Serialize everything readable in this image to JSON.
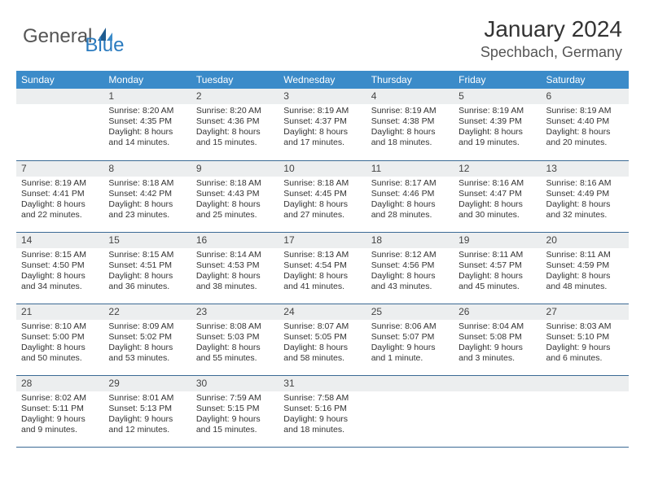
{
  "logo": {
    "general": "General",
    "blue": "Blue"
  },
  "title": "January 2024",
  "location": "Spechbach, Germany",
  "colors": {
    "header_bg": "#3b8bc9",
    "header_text": "#ffffff",
    "daynum_bg": "#eceeef",
    "row_border": "#3b6a95",
    "logo_blue": "#2b7bbf",
    "logo_gray": "#555555"
  },
  "day_headers": [
    "Sunday",
    "Monday",
    "Tuesday",
    "Wednesday",
    "Thursday",
    "Friday",
    "Saturday"
  ],
  "weeks": [
    [
      {
        "num": "",
        "lines": [
          "",
          "",
          "",
          ""
        ]
      },
      {
        "num": "1",
        "lines": [
          "Sunrise: 8:20 AM",
          "Sunset: 4:35 PM",
          "Daylight: 8 hours",
          "and 14 minutes."
        ]
      },
      {
        "num": "2",
        "lines": [
          "Sunrise: 8:20 AM",
          "Sunset: 4:36 PM",
          "Daylight: 8 hours",
          "and 15 minutes."
        ]
      },
      {
        "num": "3",
        "lines": [
          "Sunrise: 8:19 AM",
          "Sunset: 4:37 PM",
          "Daylight: 8 hours",
          "and 17 minutes."
        ]
      },
      {
        "num": "4",
        "lines": [
          "Sunrise: 8:19 AM",
          "Sunset: 4:38 PM",
          "Daylight: 8 hours",
          "and 18 minutes."
        ]
      },
      {
        "num": "5",
        "lines": [
          "Sunrise: 8:19 AM",
          "Sunset: 4:39 PM",
          "Daylight: 8 hours",
          "and 19 minutes."
        ]
      },
      {
        "num": "6",
        "lines": [
          "Sunrise: 8:19 AM",
          "Sunset: 4:40 PM",
          "Daylight: 8 hours",
          "and 20 minutes."
        ]
      }
    ],
    [
      {
        "num": "7",
        "lines": [
          "Sunrise: 8:19 AM",
          "Sunset: 4:41 PM",
          "Daylight: 8 hours",
          "and 22 minutes."
        ]
      },
      {
        "num": "8",
        "lines": [
          "Sunrise: 8:18 AM",
          "Sunset: 4:42 PM",
          "Daylight: 8 hours",
          "and 23 minutes."
        ]
      },
      {
        "num": "9",
        "lines": [
          "Sunrise: 8:18 AM",
          "Sunset: 4:43 PM",
          "Daylight: 8 hours",
          "and 25 minutes."
        ]
      },
      {
        "num": "10",
        "lines": [
          "Sunrise: 8:18 AM",
          "Sunset: 4:45 PM",
          "Daylight: 8 hours",
          "and 27 minutes."
        ]
      },
      {
        "num": "11",
        "lines": [
          "Sunrise: 8:17 AM",
          "Sunset: 4:46 PM",
          "Daylight: 8 hours",
          "and 28 minutes."
        ]
      },
      {
        "num": "12",
        "lines": [
          "Sunrise: 8:16 AM",
          "Sunset: 4:47 PM",
          "Daylight: 8 hours",
          "and 30 minutes."
        ]
      },
      {
        "num": "13",
        "lines": [
          "Sunrise: 8:16 AM",
          "Sunset: 4:49 PM",
          "Daylight: 8 hours",
          "and 32 minutes."
        ]
      }
    ],
    [
      {
        "num": "14",
        "lines": [
          "Sunrise: 8:15 AM",
          "Sunset: 4:50 PM",
          "Daylight: 8 hours",
          "and 34 minutes."
        ]
      },
      {
        "num": "15",
        "lines": [
          "Sunrise: 8:15 AM",
          "Sunset: 4:51 PM",
          "Daylight: 8 hours",
          "and 36 minutes."
        ]
      },
      {
        "num": "16",
        "lines": [
          "Sunrise: 8:14 AM",
          "Sunset: 4:53 PM",
          "Daylight: 8 hours",
          "and 38 minutes."
        ]
      },
      {
        "num": "17",
        "lines": [
          "Sunrise: 8:13 AM",
          "Sunset: 4:54 PM",
          "Daylight: 8 hours",
          "and 41 minutes."
        ]
      },
      {
        "num": "18",
        "lines": [
          "Sunrise: 8:12 AM",
          "Sunset: 4:56 PM",
          "Daylight: 8 hours",
          "and 43 minutes."
        ]
      },
      {
        "num": "19",
        "lines": [
          "Sunrise: 8:11 AM",
          "Sunset: 4:57 PM",
          "Daylight: 8 hours",
          "and 45 minutes."
        ]
      },
      {
        "num": "20",
        "lines": [
          "Sunrise: 8:11 AM",
          "Sunset: 4:59 PM",
          "Daylight: 8 hours",
          "and 48 minutes."
        ]
      }
    ],
    [
      {
        "num": "21",
        "lines": [
          "Sunrise: 8:10 AM",
          "Sunset: 5:00 PM",
          "Daylight: 8 hours",
          "and 50 minutes."
        ]
      },
      {
        "num": "22",
        "lines": [
          "Sunrise: 8:09 AM",
          "Sunset: 5:02 PM",
          "Daylight: 8 hours",
          "and 53 minutes."
        ]
      },
      {
        "num": "23",
        "lines": [
          "Sunrise: 8:08 AM",
          "Sunset: 5:03 PM",
          "Daylight: 8 hours",
          "and 55 minutes."
        ]
      },
      {
        "num": "24",
        "lines": [
          "Sunrise: 8:07 AM",
          "Sunset: 5:05 PM",
          "Daylight: 8 hours",
          "and 58 minutes."
        ]
      },
      {
        "num": "25",
        "lines": [
          "Sunrise: 8:06 AM",
          "Sunset: 5:07 PM",
          "Daylight: 9 hours",
          "and 1 minute."
        ]
      },
      {
        "num": "26",
        "lines": [
          "Sunrise: 8:04 AM",
          "Sunset: 5:08 PM",
          "Daylight: 9 hours",
          "and 3 minutes."
        ]
      },
      {
        "num": "27",
        "lines": [
          "Sunrise: 8:03 AM",
          "Sunset: 5:10 PM",
          "Daylight: 9 hours",
          "and 6 minutes."
        ]
      }
    ],
    [
      {
        "num": "28",
        "lines": [
          "Sunrise: 8:02 AM",
          "Sunset: 5:11 PM",
          "Daylight: 9 hours",
          "and 9 minutes."
        ]
      },
      {
        "num": "29",
        "lines": [
          "Sunrise: 8:01 AM",
          "Sunset: 5:13 PM",
          "Daylight: 9 hours",
          "and 12 minutes."
        ]
      },
      {
        "num": "30",
        "lines": [
          "Sunrise: 7:59 AM",
          "Sunset: 5:15 PM",
          "Daylight: 9 hours",
          "and 15 minutes."
        ]
      },
      {
        "num": "31",
        "lines": [
          "Sunrise: 7:58 AM",
          "Sunset: 5:16 PM",
          "Daylight: 9 hours",
          "and 18 minutes."
        ]
      },
      {
        "num": "",
        "lines": [
          "",
          "",
          "",
          ""
        ]
      },
      {
        "num": "",
        "lines": [
          "",
          "",
          "",
          ""
        ]
      },
      {
        "num": "",
        "lines": [
          "",
          "",
          "",
          ""
        ]
      }
    ]
  ]
}
